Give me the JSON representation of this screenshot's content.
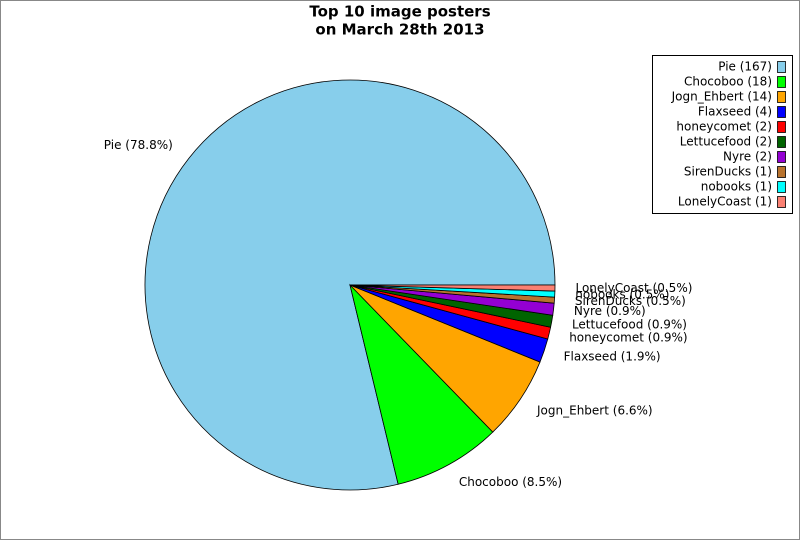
{
  "chart_data": {
    "type": "pie",
    "title": [
      "Top 10 image posters",
      "on March 28th 2013"
    ],
    "categories": [
      "Pie (167)",
      "Chocoboo (18)",
      "Jogn_Ehbert (14)",
      "Flaxseed (4)",
      "honeycomet (2)",
      "Lettucefood (2)",
      "Nyre (2)",
      "SirenDucks (1)",
      "nobooks (1)",
      "LonelyCoast (1)"
    ],
    "values": [
      167,
      18,
      14,
      4,
      2,
      2,
      2,
      1,
      1,
      1
    ],
    "value_labels": [
      "Pie (78.8%)",
      "Chocoboo (8.5%)",
      "Jogn_Ehbert (6.6%)",
      "Flaxseed (1.9%)",
      "honeycomet (0.9%)",
      "Lettucefood (0.9%)",
      "Nyre (0.9%)",
      "SirenDucks (0.5%)",
      "nobooks (0.5%)",
      "LonelyCoast (0.5%)"
    ],
    "colors": [
      "#87ceeb",
      "#00ff00",
      "#ffa500",
      "#0000ff",
      "#ff0000",
      "#006400",
      "#9400d3",
      "#b8732e",
      "#00ffff",
      "#fa8072"
    ],
    "legend": "upper right"
  }
}
